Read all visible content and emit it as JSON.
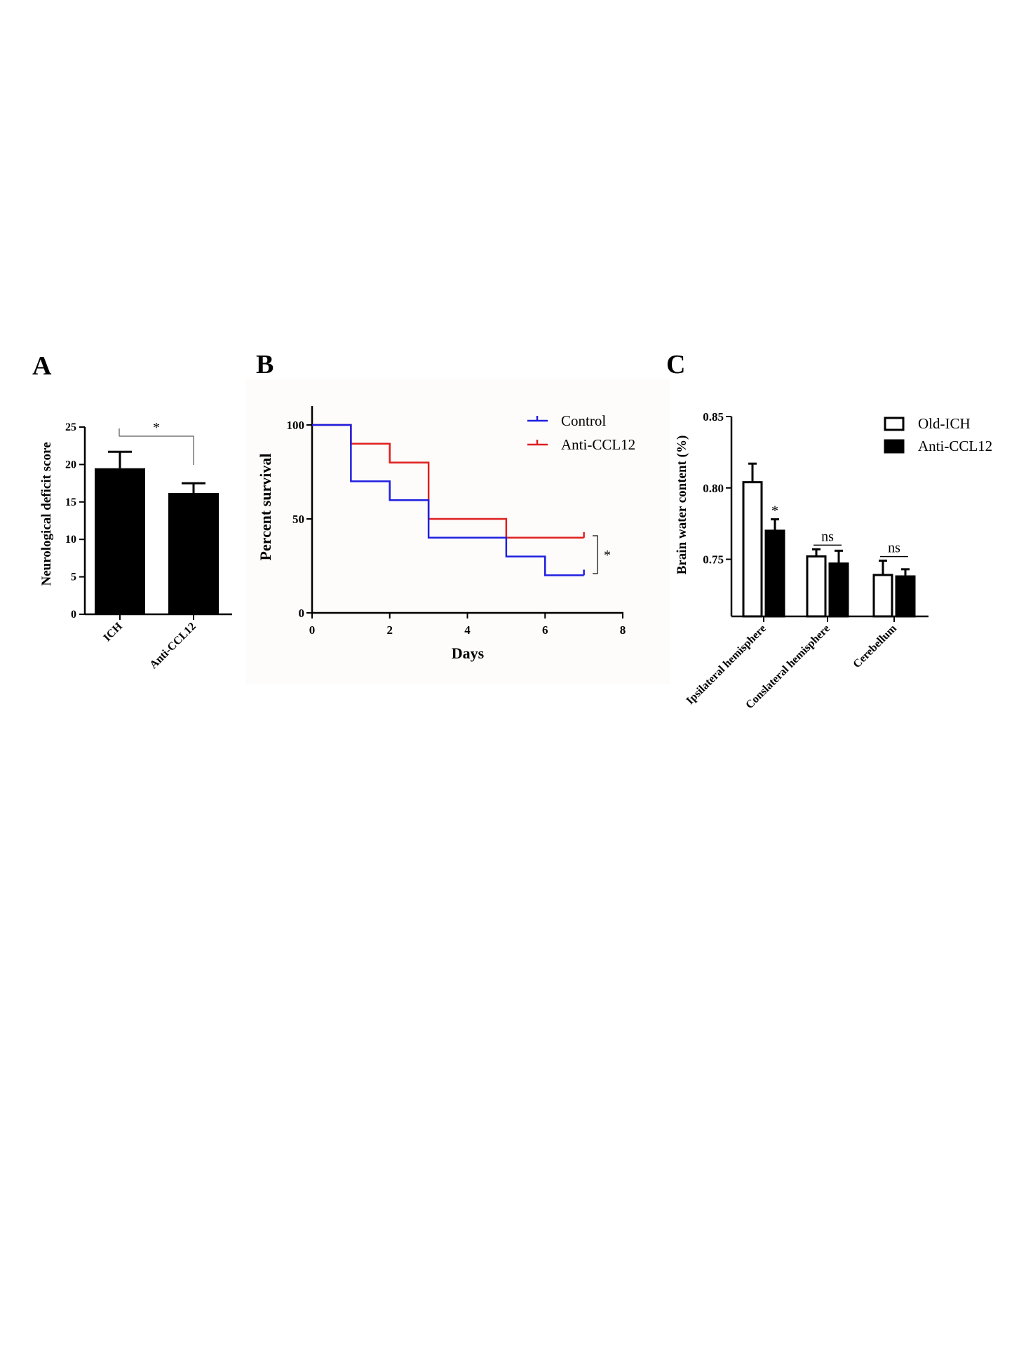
{
  "panels": {
    "a": {
      "letter": "A",
      "sig": "*"
    },
    "b": {
      "letter": "B",
      "sig": "*"
    },
    "c": {
      "letter": "C",
      "sig": [
        "*",
        "ns",
        "ns"
      ]
    }
  },
  "colors": {
    "control": "#1f1fe0",
    "anti": "#e01f1f",
    "bar": "#000000",
    "plot_bg_b": "#fdfcfb"
  },
  "chart_data": [
    {
      "id": "A",
      "type": "bar",
      "ylabel": "Neurological deficit score",
      "xlabel": "",
      "categories": [
        "ICH",
        "Anti-CCL12"
      ],
      "values": [
        19.5,
        16.2
      ],
      "errors": [
        2.2,
        1.3
      ],
      "ylim": [
        0,
        25
      ],
      "yticks": [
        0,
        5,
        10,
        15,
        20,
        25
      ],
      "annotations": [
        {
          "text": "*",
          "between": [
            "ICH",
            "Anti-CCL12"
          ]
        }
      ],
      "grid": false
    },
    {
      "id": "B",
      "type": "line",
      "step": true,
      "xlabel": "Days",
      "ylabel": "Percent survival",
      "xlim": [
        0,
        8
      ],
      "ylim": [
        0,
        110
      ],
      "xticks": [
        0,
        2,
        4,
        6,
        8
      ],
      "yticks": [
        0,
        50,
        100
      ],
      "legend": "top-right",
      "series": [
        {
          "name": "Control",
          "color": "#1f1fe0",
          "x": [
            0,
            1,
            2,
            3,
            5,
            6,
            7
          ],
          "y": [
            100,
            70,
            60,
            40,
            30,
            20,
            20
          ]
        },
        {
          "name": "Anti-CCL12",
          "color": "#e01f1f",
          "x": [
            0,
            1,
            2,
            3,
            5,
            7
          ],
          "y": [
            100,
            90,
            80,
            50,
            40,
            40
          ]
        }
      ],
      "annotations": [
        {
          "text": "*"
        }
      ],
      "grid": false
    },
    {
      "id": "C",
      "type": "bar",
      "ylabel": "Brain water content (%)",
      "xlabel": "",
      "categories": [
        "Ipsilateral hemisphere",
        "Conslateral hemisphere",
        "Cerebellum"
      ],
      "ylim": [
        0.71,
        0.85
      ],
      "yticks": [
        0.75,
        0.8,
        0.85
      ],
      "ytick_labels": [
        "0.75",
        "0.80",
        "0.85"
      ],
      "legend": "top-right",
      "series": [
        {
          "name": "Old-ICH",
          "fill": "#ffffff",
          "values": [
            0.804,
            0.752,
            0.739
          ],
          "errors": [
            0.013,
            0.005,
            0.01
          ]
        },
        {
          "name": "Anti-CCL12",
          "fill": "#000000",
          "values": [
            0.77,
            0.747,
            0.738
          ],
          "errors": [
            0.008,
            0.009,
            0.005
          ]
        }
      ],
      "annotations": [
        {
          "text": "*",
          "category": "Ipsilateral hemisphere"
        },
        {
          "text": "ns",
          "category": "Conslateral hemisphere"
        },
        {
          "text": "ns",
          "category": "Cerebellum"
        }
      ],
      "grid": false
    }
  ]
}
